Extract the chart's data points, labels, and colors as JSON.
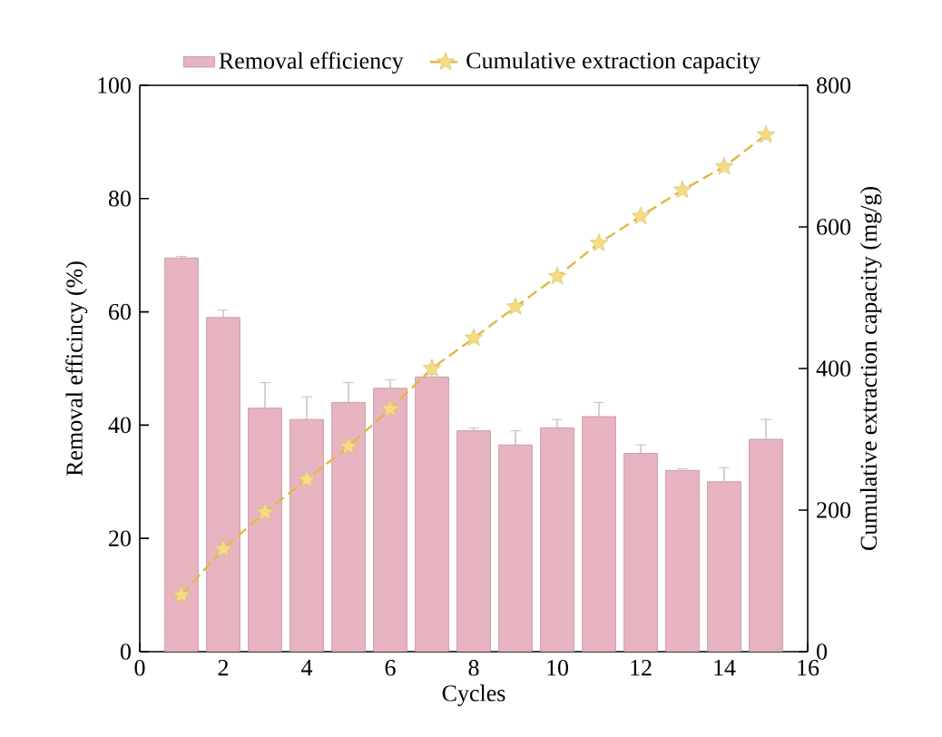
{
  "chart_data": {
    "type": "bar",
    "x": [
      1,
      2,
      3,
      4,
      5,
      6,
      7,
      8,
      9,
      10,
      11,
      12,
      13,
      14,
      15
    ],
    "series": [
      {
        "name": "Removal efficiency",
        "color": "#e8b4c2",
        "values": [
          69.5,
          59,
          43,
          41,
          44,
          46.5,
          48.5,
          39,
          36.5,
          39.5,
          41.5,
          35,
          32,
          30,
          37.5
        ],
        "errors": [
          0.3,
          1.3,
          4.5,
          4,
          3.5,
          1.5,
          0.5,
          0.5,
          2.5,
          1.5,
          2.5,
          1.5,
          0.3,
          2.5,
          3.5
        ]
      },
      {
        "name": "Cumulative extraction capacity",
        "type": "line",
        "axis": "y2",
        "color": "#e0b840",
        "marker": "star",
        "line_style": "dashed",
        "values": [
          80,
          145,
          197,
          243,
          290,
          343,
          400,
          443,
          487,
          530,
          577,
          615,
          652,
          685,
          730
        ]
      }
    ],
    "xlim": [
      0,
      16
    ],
    "xticks": [
      0,
      2,
      4,
      6,
      8,
      10,
      12,
      14,
      16
    ],
    "ylim": [
      0,
      100
    ],
    "yticks": [
      0,
      20,
      40,
      60,
      80,
      100
    ],
    "y2lim": [
      0,
      800
    ],
    "y2ticks": [
      0,
      200,
      400,
      600,
      800
    ],
    "xlabel": "Cycles",
    "ylabel": "Removal efficincy (%)",
    "y2label": "Cumulative extraction capacity (mg/g)",
    "legend": "top"
  }
}
